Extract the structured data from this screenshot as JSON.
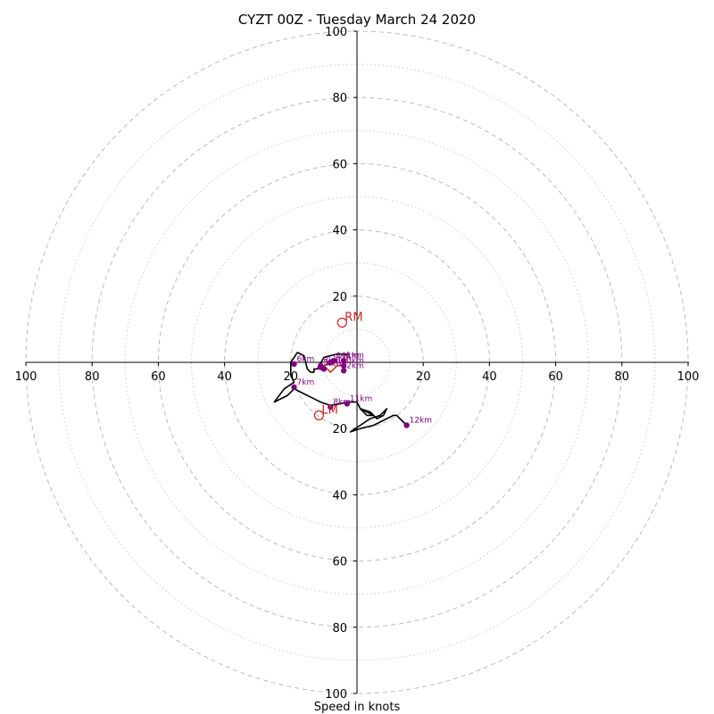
{
  "chart_data": {
    "type": "scatter",
    "title": "CYZT 00Z - Tuesday March 24 2020",
    "xlabel": "Speed in knots",
    "xlim": [
      -100,
      100
    ],
    "ylim": [
      -100,
      100
    ],
    "major_rings": [
      10,
      30,
      50,
      70,
      90
    ],
    "minor_rings": [
      20,
      40,
      60,
      80,
      100
    ],
    "x_ticks": [
      {
        "value": -100,
        "label": "100"
      },
      {
        "value": -80,
        "label": "80"
      },
      {
        "value": -60,
        "label": "60"
      },
      {
        "value": -40,
        "label": "40"
      },
      {
        "value": -20,
        "label": "20"
      },
      {
        "value": 20,
        "label": "20"
      },
      {
        "value": 40,
        "label": "40"
      },
      {
        "value": 60,
        "label": "60"
      },
      {
        "value": 80,
        "label": "80"
      },
      {
        "value": 100,
        "label": "100"
      }
    ],
    "y_ticks": [
      {
        "value": 100,
        "label": "100"
      },
      {
        "value": 80,
        "label": "80"
      },
      {
        "value": 60,
        "label": "60"
      },
      {
        "value": 40,
        "label": "40"
      },
      {
        "value": 20,
        "label": "20"
      },
      {
        "value": -20,
        "label": "20"
      },
      {
        "value": -40,
        "label": "40"
      },
      {
        "value": -60,
        "label": "60"
      },
      {
        "value": -80,
        "label": "80"
      },
      {
        "value": -100,
        "label": "100"
      }
    ],
    "hodograph": {
      "color": "#000000",
      "points": [
        [
          -2.5,
          2.4
        ],
        [
          -6,
          2.5
        ],
        [
          -10,
          1.5
        ],
        [
          -12,
          -2
        ],
        [
          -13,
          -2
        ],
        [
          -13,
          -3
        ],
        [
          -14,
          -3
        ],
        [
          -15,
          -2
        ],
        [
          -16,
          2
        ],
        [
          -18,
          3
        ],
        [
          -20,
          0
        ],
        [
          -20,
          -4
        ],
        [
          -19,
          -6
        ],
        [
          -22,
          -8
        ],
        [
          -25,
          -12
        ],
        [
          -21,
          -10
        ],
        [
          -19,
          -8
        ],
        [
          -17,
          -9
        ],
        [
          -15,
          -10
        ],
        [
          -13,
          -11
        ],
        [
          -11,
          -12
        ],
        [
          -8,
          -13
        ],
        [
          -5,
          -12.5
        ],
        [
          -3,
          -12
        ],
        [
          0,
          -12
        ],
        [
          1,
          -14
        ],
        [
          3,
          -15
        ],
        [
          5,
          -16
        ],
        [
          3,
          -16
        ],
        [
          1,
          -14
        ],
        [
          4,
          -15
        ],
        [
          6,
          -17
        ],
        [
          8,
          -16
        ],
        [
          9,
          -14
        ],
        [
          7,
          -16
        ],
        [
          4,
          -17
        ],
        [
          1,
          -19
        ],
        [
          -2,
          -21
        ],
        [
          1,
          -20
        ],
        [
          5,
          -19
        ],
        [
          11,
          -16
        ],
        [
          12,
          -16
        ],
        [
          15,
          -19
        ]
      ]
    },
    "shear_line": {
      "color": "#cc2200",
      "points": [
        [
          -6,
          0
        ],
        [
          -10,
          -1
        ],
        [
          -8,
          -3
        ],
        [
          -6,
          -1
        ],
        [
          -4,
          -1
        ],
        [
          -3,
          0.2
        ]
      ]
    },
    "heights": {
      "color": "#800080",
      "points": [
        {
          "label": "0km",
          "x": -4,
          "y": -1
        },
        {
          "label": "1km",
          "x": -4,
          "y": 0.5
        },
        {
          "label": "2km",
          "x": -4,
          "y": -2.5
        },
        {
          "label": "3km",
          "x": -11,
          "y": -1
        },
        {
          "label": "4km",
          "x": -10,
          "y": -2
        },
        {
          "label": "5km",
          "x": -11,
          "y": -1.5
        },
        {
          "label": "6km",
          "x": -19,
          "y": -0.5
        },
        {
          "label": "7km",
          "x": -19,
          "y": -7.5
        },
        {
          "label": "8km",
          "x": -8,
          "y": -13.5
        },
        {
          "label": "9km",
          "x": -8,
          "y": 0
        },
        {
          "label": "10km",
          "x": -7,
          "y": 0.5
        },
        {
          "label": "11km",
          "x": -3,
          "y": -12.5
        },
        {
          "label": "12km",
          "x": 15,
          "y": -19
        }
      ]
    },
    "markers": [
      {
        "label": "RM",
        "x": -4.5,
        "y": 12,
        "color": "#cc2222"
      },
      {
        "label": "LM",
        "x": -11.5,
        "y": -16,
        "color": "#cc2222"
      }
    ]
  }
}
